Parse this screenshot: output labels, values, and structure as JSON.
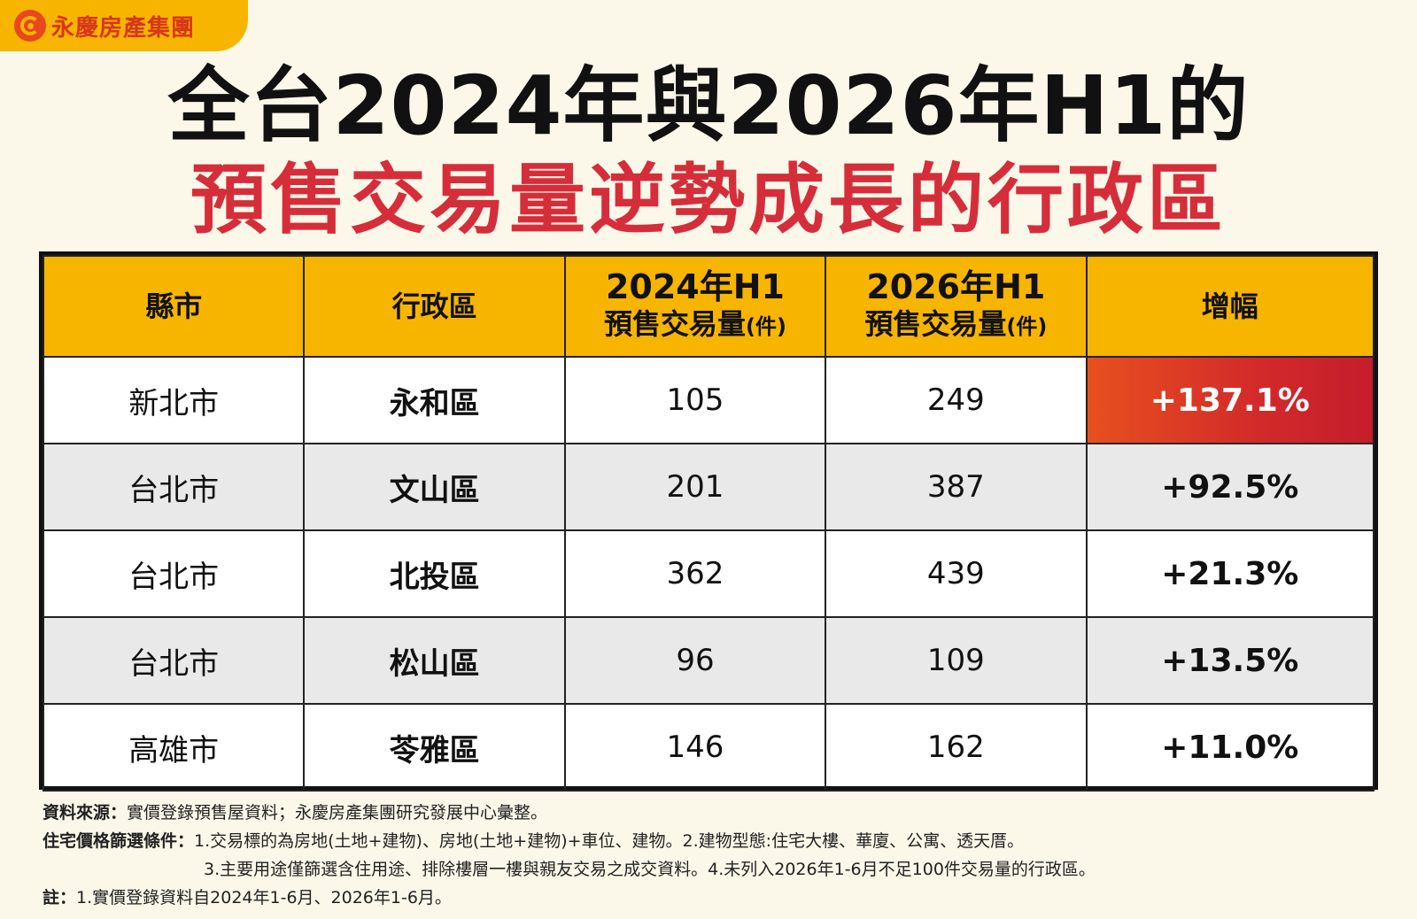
{
  "brand": {
    "name": "永慶房產集團"
  },
  "title": {
    "line1": "全台2024年與2026年H1的",
    "line2": "預售交易量逆勢成長的行政區"
  },
  "table": {
    "headers": {
      "city": "縣市",
      "district": "行政區",
      "col2024_top": "2024年H1",
      "col2024_sub": "預售交易量",
      "col2026_top": "2026年H1",
      "col2026_sub": "預售交易量",
      "unit": "(件)",
      "growth": "增幅"
    },
    "rows": [
      {
        "city": "新北市",
        "district": "永和區",
        "v2024": "105",
        "v2026": "249",
        "growth": "+137.1%"
      },
      {
        "city": "台北市",
        "district": "文山區",
        "v2024": "201",
        "v2026": "387",
        "growth": "+92.5%"
      },
      {
        "city": "台北市",
        "district": "北投區",
        "v2024": "362",
        "v2026": "439",
        "growth": "+21.3%"
      },
      {
        "city": "台北市",
        "district": "松山區",
        "v2024": "96",
        "v2026": "109",
        "growth": "+13.5%"
      },
      {
        "city": "高雄市",
        "district": "苓雅區",
        "v2024": "146",
        "v2026": "162",
        "growth": "+11.0%"
      }
    ]
  },
  "colors": {
    "header_bg": "#f7b500",
    "title_red": "#d62d3a",
    "highlight": "#d22a2a"
  },
  "notes": {
    "source_label": "資料來源：",
    "source_text": "實價登錄預售屋資料；永慶房產集團研究發展中心彙整。",
    "filter_label": "住宅價格篩選條件：",
    "filter_text1": "1.交易標的為房地(土地+建物)、房地(土地+建物)+車位、建物。2.建物型態:住宅大樓、華廈、公寓、透天厝。",
    "filter_text2": "3.主要用途僅篩選含住用途、排除樓層一樓與親友交易之成交資料。4.未列入2026年1-6月不足100件交易量的行政區。",
    "note_label": "註：",
    "note_text": "1.實價登錄資料自2024年1-6月、2026年1-6月。"
  }
}
